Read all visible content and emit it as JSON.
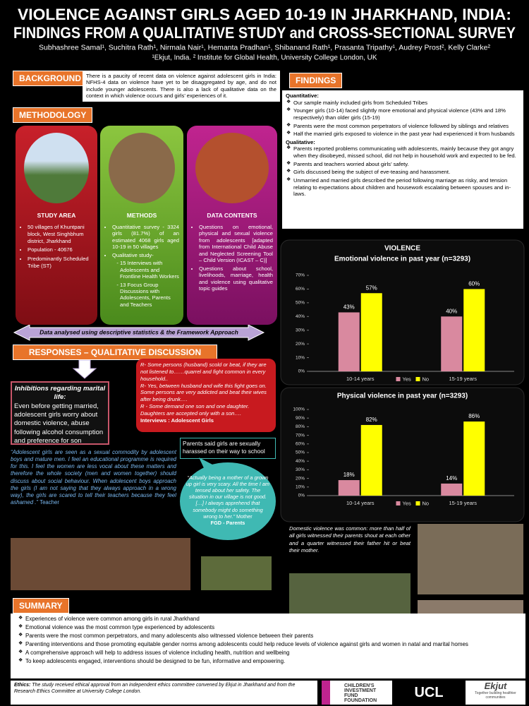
{
  "header": {
    "title_lines": [
      "VIOLENCE AGAINST GIRLS  AGED 10-19 IN JHARKHAND, INDIA:",
      "FINDINGS  FROM  A QUALITATIVE STUDY and CROSS-SECTIONAL SURVEY"
    ],
    "authors": "Subhashree Samal¹, Suchitra Rath¹, Nirmala Nair¹, Hemanta Pradhan¹, Shibanand Rath¹, Prasanta Tripathy¹, Audrey Prost², Kelly Clarke²",
    "affiliations": "¹Ekjut, India. ² Institute for Global Health, University College London, UK"
  },
  "background": {
    "label": "BACKGROUND",
    "text": "There is a paucity of recent data on violence against adolescent girls in India: NFHS-4 data on violence have yet to be disaggregated by age, and do not include younger adolescents. There is also a lack of qualitative data on the context in which violence occurs and girls’ experiences of it."
  },
  "methodology": {
    "label": "METHODOLOGY",
    "study_area": {
      "title": "STUDY AREA",
      "items": [
        "50 villages of Khuntpani block, West Singhbhum district, Jharkhand",
        "Population - 40676",
        "Predominantly Scheduled Tribe (ST)"
      ]
    },
    "methods": {
      "title": "METHODS",
      "items": [
        "Quantitative survey - 3324 girls (81.7%) of an estimated 4068 girls aged 10-19 in 50 villages",
        "Qualitative study-"
      ],
      "subitems": [
        "15 Interviews with Adolescents and Frontline Health Workers",
        "13 Focus Group Discussions with Adolescents, Parents and Teachers"
      ]
    },
    "data_contents": {
      "title": "DATA CONTENTS",
      "items": [
        "Questions on emotional, physical and sexual violence from adolescents [adapted from International Child Abuse and Neglected Screening Tool – Child Version (ICAST – C)]",
        "Questions about school, livelihoods, marriage, health and violence using qualitative topic guides"
      ]
    },
    "analysis": "Data analysed using descriptive statistics & the Framework Approach"
  },
  "findings": {
    "label": "FINDINGS",
    "quantitative_heading": "Quantitative:",
    "quantitative": [
      "Our sample mainly included girls from Scheduled Tribes",
      "Younger girls (10-14) faced slightly more emotional  and physical violence (43% and 18% respectively) than older girls (15-19)",
      "Parents were the most common perpetrators of violence followed by siblings and relatives",
      "Half the married girls exposed to violence in the past year had experienced it from husbands"
    ],
    "qualitative_heading": "Qualitative:",
    "qualitative": [
      "Parents reported  problems communicating with adolescents, mainly because they got angry when they disobeyed, missed school, did not help  in household work and expected to be fed.",
      "Parents and teachers  worried about girls’ safety.",
      "Girls discussed being the subject of eve-teasing and harassment.",
      "Unmarried and married girls described the period following marriage as risky, and tension relating to expectations about children and housework escalating between spouses and in-laws."
    ],
    "chart_heading": "VIOLENCE",
    "domestic": "Domestic violence was common: more than half of all girls witnessed their parents shout at each other and a quarter witnessed their father hit or beat their mother."
  },
  "chart_data": [
    {
      "type": "bar",
      "title": "Emotional violence in past year (n=3293)",
      "categories": [
        "10-14 years",
        "15-19 years"
      ],
      "series": [
        {
          "name": "Yes",
          "color": "#d9899f",
          "values": [
            43,
            40
          ],
          "value_labels": [
            "43%",
            "40%"
          ]
        },
        {
          "name": "No",
          "color": "#ffff00",
          "values": [
            57,
            60
          ],
          "value_labels": [
            "57%",
            "60%"
          ]
        }
      ],
      "ylim": [
        0,
        70
      ],
      "yticks": [
        {
          "value": 0,
          "label": "0%"
        },
        {
          "value": 10,
          "label": "10%"
        },
        {
          "value": 20,
          "label": "20%"
        },
        {
          "value": 30,
          "label": "30%"
        },
        {
          "value": 40,
          "label": "40%"
        },
        {
          "value": 50,
          "label": "50%"
        },
        {
          "value": 60,
          "label": "60%"
        },
        {
          "value": 70,
          "label": "70%"
        }
      ],
      "grid": false
    },
    {
      "type": "bar",
      "title": "Physical violence in past year (n=3293)",
      "categories": [
        "10-14 years",
        "15-19 years"
      ],
      "series": [
        {
          "name": "Yes",
          "color": "#d9899f",
          "values": [
            18,
            14
          ],
          "value_labels": [
            "18%",
            "14%"
          ]
        },
        {
          "name": "No",
          "color": "#ffff00",
          "values": [
            82,
            86
          ],
          "value_labels": [
            "82%",
            "86%"
          ]
        }
      ],
      "ylim": [
        0,
        100
      ],
      "yticks": [
        {
          "value": 0,
          "label": "0%"
        },
        {
          "value": 10,
          "label": "10%"
        },
        {
          "value": 20,
          "label": "20%"
        },
        {
          "value": 30,
          "label": "30%"
        },
        {
          "value": 40,
          "label": "40%"
        },
        {
          "value": 50,
          "label": "50%"
        },
        {
          "value": 60,
          "label": "60%"
        },
        {
          "value": 70,
          "label": "70%"
        },
        {
          "value": 80,
          "label": "80%"
        },
        {
          "value": 90,
          "label": "90%"
        },
        {
          "value": 100,
          "label": "100%"
        }
      ],
      "grid": false
    }
  ],
  "responses": {
    "label": "RESPONSES – QUALITATIVE DISCUSSION",
    "inhibitions_title": "Inhibitions regarding marital life:",
    "inhibitions_text": "Even before getting married, adolescent girls worry about domestic violence, abuse following alcohol consumption and preference for son",
    "interviews": [
      "R- Some persons (husband) scold or beat, if they are not listened to……quarrel and fight common in every household..",
      "R- Yes, between husband and wife this fight goes on. Some persons are very addicted and beat their wives after being drunk….",
      "R - Some demand one son and one daughter. Daughters are accepted only with a son…."
    ],
    "interviews_source": "Interviews : Adolescent Girls",
    "teacher_quote": "“Adolescent girls are seen as a sexual commodity by adolescent boys and mature men. I feel an educational programme is required for this. I feel the women are less vocal about these matters and therefore the whole society (men and women together) should discuss about social behaviour. When adolescent boys approach the girls (I am not saying that they always approach in a wrong way), the girls are scared to tell their teachers because they feel ashamed .”",
    "teacher_source": "Teacher",
    "harassment": "Parents said girls are sexually harassed on their way to school",
    "mother_quote": "“Actually being a mother of a grown up girl is very scary. All the time I am tensed about her safety. The situation in our village is not good. […] I always apprehend that somebody might do something wrong to her.”",
    "mother_speaker": "Mother",
    "mother_source": "FGD - Parents"
  },
  "summary": {
    "label": "SUMMARY",
    "items": [
      "Experiences of violence were common among girls in rural Jharkhand",
      "Emotional violence was the most common type experienced by adolescents",
      "Parents were the most common perpetrators, and many adolescents also witnessed violence between their parents",
      "Parenting interventions and those promoting equitable gender norms among adolescents could help reduce levels of violence against girls and women in natal and marital homes",
      "A comprehensive approach will help to address issues of violence including health, nutrition and wellbeing",
      "To keep adolescents engaged, interventions should be designed to be fun, informative and empowering."
    ]
  },
  "footer": {
    "ethics_label": "Ethics:",
    "ethics_text": "The study received ethical approval from an independent ethics committee convened by Ekjut in Jharkhand and from the Research Ethics Committee at University College London.",
    "logos": [
      "CHILDREN'S INVESTMENT FUND FOUNDATION",
      "UCL",
      "Ekjut",
      "Together building healthier communities"
    ]
  }
}
